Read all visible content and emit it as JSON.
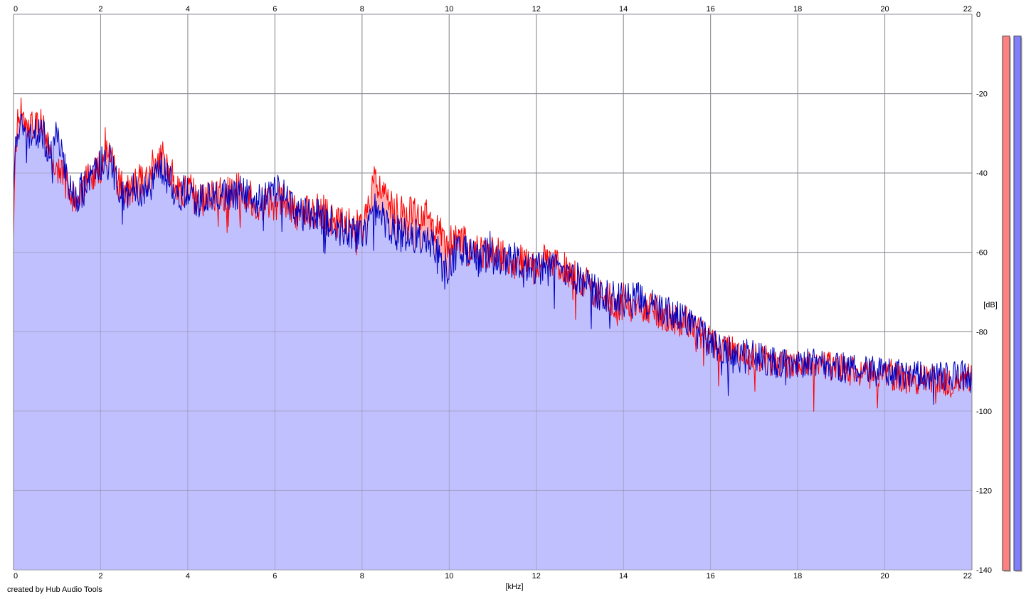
{
  "credit": "created by Hub Audio Tools",
  "chart_data": {
    "type": "area",
    "xlabel": "[kHz]",
    "ylabel": "[dB]",
    "xlim": [
      0,
      22
    ],
    "ylim": [
      -140,
      0
    ],
    "x_ticks": [
      0,
      2,
      4,
      6,
      8,
      10,
      12,
      14,
      16,
      18,
      20,
      22
    ],
    "y_ticks": [
      0,
      -20,
      -40,
      -60,
      -80,
      -100,
      -120,
      -140
    ],
    "grid": true,
    "x_anchors_khz": [
      0,
      0.05,
      0.15,
      0.3,
      0.5,
      0.7,
      0.9,
      1.0,
      1.2,
      1.4,
      1.6,
      1.8,
      2.0,
      2.2,
      2.4,
      2.6,
      2.8,
      3.0,
      3.2,
      3.4,
      3.6,
      3.8,
      4.0,
      4.2,
      4.5,
      5.0,
      5.2,
      5.5,
      5.8,
      6.0,
      6.2,
      6.5,
      7.0,
      7.5,
      8.0,
      8.3,
      8.6,
      9.0,
      9.5,
      9.9,
      10.2,
      10.5,
      11.0,
      11.5,
      12.0,
      12.3,
      12.5,
      13.0,
      13.5,
      14.0,
      14.5,
      15.0,
      15.5,
      16.0,
      16.5,
      17.0,
      17.5,
      18.0,
      18.5,
      19.0,
      19.5,
      20.0,
      20.5,
      21.0,
      21.5,
      22.0
    ],
    "series": [
      {
        "color": "#ff0000",
        "fill": "#ffb0b0",
        "values": [
          -52,
          -32,
          -23,
          -30,
          -27,
          -28,
          -35,
          -40,
          -42,
          -47,
          -44,
          -40,
          -38,
          -33,
          -43,
          -45,
          -42,
          -43,
          -38,
          -36,
          -40,
          -45,
          -43,
          -47,
          -46,
          -45,
          -44,
          -47,
          -48,
          -48,
          -46,
          -50,
          -50,
          -53,
          -54,
          -42,
          -48,
          -50,
          -51,
          -58,
          -56,
          -60,
          -60,
          -62,
          -64,
          -61,
          -63,
          -66,
          -71,
          -73,
          -73,
          -76,
          -78,
          -83,
          -85,
          -86,
          -88,
          -88,
          -88,
          -89,
          -91,
          -91,
          -92,
          -92,
          -93,
          -91
        ]
      },
      {
        "color": "#0000c0",
        "fill": "#c0c0ff",
        "values": [
          -45,
          -30,
          -27,
          -33,
          -30,
          -31,
          -36,
          -30,
          -40,
          -46,
          -44,
          -42,
          -38,
          -36,
          -44,
          -46,
          -44,
          -45,
          -42,
          -39,
          -42,
          -46,
          -44,
          -47,
          -46,
          -46,
          -44,
          -48,
          -46,
          -44,
          -46,
          -50,
          -51,
          -54,
          -56,
          -49,
          -54,
          -56,
          -56,
          -65,
          -60,
          -60,
          -61,
          -62,
          -64,
          -64,
          -65,
          -67,
          -71,
          -72,
          -72,
          -75,
          -78,
          -83,
          -85,
          -86,
          -88,
          -88,
          -88,
          -89,
          -90,
          -90,
          -91,
          -91,
          -91,
          -91
        ]
      }
    ],
    "level_meters": [
      {
        "color": "#ff8080",
        "level_db": -0.5
      },
      {
        "color": "#8080ff",
        "level_db": -0.5
      }
    ]
  }
}
